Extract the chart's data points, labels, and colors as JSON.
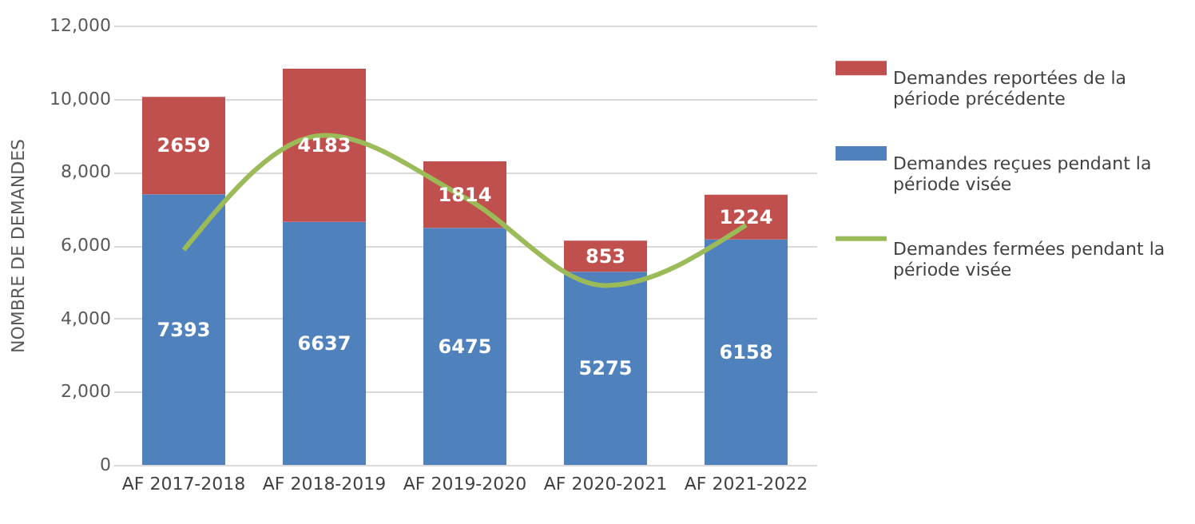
{
  "chart_data": {
    "type": "bar",
    "stacked": true,
    "ylabel": "NOMBRE DE DEMANDES",
    "categories": [
      "AF 2017-2018",
      "AF 2018-2019",
      "AF 2019-2020",
      "AF 2020-2021",
      "AF 2021-2022"
    ],
    "series": [
      {
        "name": "Demandes reçues pendant la période visée",
        "color": "#4f81bd",
        "values": [
          7393,
          6637,
          6475,
          5275,
          6158
        ],
        "value_labels": [
          "7393",
          "6637",
          "6475",
          "5275",
          "6158"
        ]
      },
      {
        "name": "Demandes reportées de la période précédente",
        "color": "#c0504d",
        "values": [
          2659,
          4183,
          1814,
          853,
          1224
        ],
        "value_labels": [
          "2659",
          "4183",
          "1814",
          "853",
          "1224"
        ]
      },
      {
        "name": "Demandes fermées pendant la période visée",
        "color": "#9bbb59",
        "type": "line",
        "values": [
          5870,
          9000,
          7300,
          4900,
          6550
        ]
      }
    ],
    "ylim": [
      0,
      12000
    ],
    "yticks": [
      {
        "value": 0,
        "label": "0"
      },
      {
        "value": 2000,
        "label": "2,000"
      },
      {
        "value": 4000,
        "label": "4,000"
      },
      {
        "value": 6000,
        "label": "6,000"
      },
      {
        "value": 8000,
        "label": "8,000"
      },
      {
        "value": 10000,
        "label": "10,000"
      },
      {
        "value": 12000,
        "label": "12,000"
      }
    ],
    "grid": "y",
    "legend": "right",
    "marker": "none",
    "line_style": "solid"
  }
}
